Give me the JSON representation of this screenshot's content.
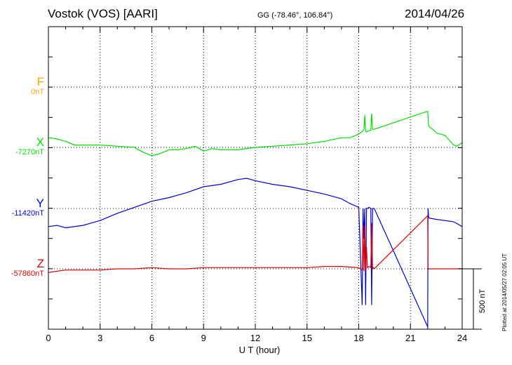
{
  "header": {
    "station": "Vostok (VOS)  [AARI]",
    "coordinates": "GG (-78.46°, 106.84°)",
    "date": "2014/04/26"
  },
  "components": [
    {
      "name": "F",
      "baseline": "0nT",
      "color": "#ffa500"
    },
    {
      "name": "X",
      "baseline": "-7270nT",
      "color": "#00e000"
    },
    {
      "name": "Y",
      "baseline": "-11420nT",
      "color": "#0000dd"
    },
    {
      "name": "Z",
      "baseline": "-57860nT",
      "color": "#dd0000"
    }
  ],
  "scale_bar": {
    "label": "500 nT"
  },
  "plotted_note": "Plotted at 2014/05/27 02:05 UT",
  "chart_data": {
    "type": "line",
    "title": "Vostok (VOS)  [AARI]",
    "xlabel": "U T (hour)",
    "ylabel": "",
    "xlim": [
      0,
      24
    ],
    "xticks": [
      0,
      3,
      6,
      9,
      12,
      15,
      18,
      21,
      24
    ],
    "ylim_nT_offset": [
      -500,
      3500
    ],
    "grid": true,
    "scale_bar_nT": 500,
    "series": [
      {
        "name": "F",
        "baseline_nT": 0,
        "color": "#ffa500",
        "x": [],
        "y": []
      },
      {
        "name": "X",
        "baseline_nT": -7270,
        "color": "#00e000",
        "x": [
          0,
          0.5,
          1,
          1.5,
          2,
          3,
          4,
          5,
          5.5,
          6,
          6.5,
          7,
          7.5,
          8,
          8.5,
          9,
          9.5,
          10,
          11,
          12,
          13,
          14,
          15,
          16,
          17,
          17.5,
          18,
          18.2,
          18.3,
          18.35,
          18.4,
          18.5,
          18.6,
          18.7,
          18.75,
          18.8,
          18.9,
          22.0,
          22.05,
          22.1,
          22.3,
          22.5,
          23,
          23.5,
          23.7,
          24
        ],
        "y": [
          80,
          70,
          50,
          20,
          20,
          20,
          10,
          0,
          -40,
          -70,
          -50,
          -20,
          -20,
          -10,
          10,
          -30,
          -10,
          -20,
          -20,
          0,
          10,
          20,
          30,
          50,
          80,
          80,
          110,
          130,
          150,
          270,
          130,
          130,
          140,
          140,
          280,
          150,
          150,
          300,
          180,
          170,
          150,
          120,
          100,
          20,
          10,
          40
        ]
      },
      {
        "name": "Y",
        "baseline_nT": -11420,
        "color": "#0000dd",
        "x": [
          0,
          0.5,
          1,
          2,
          3,
          4,
          5,
          6,
          7,
          8,
          9,
          10,
          11,
          11.5,
          12,
          13,
          14,
          15,
          16,
          17,
          17.5,
          18,
          18.2,
          18.25,
          18.3,
          18.35,
          18.4,
          18.45,
          18.5,
          18.6,
          18.7,
          18.75,
          18.8,
          18.85,
          18.9,
          22.0,
          22.02,
          22.05,
          22.1,
          22.5,
          23,
          23.5,
          24
        ],
        "y": [
          -150,
          -140,
          -160,
          -140,
          -100,
          -40,
          10,
          60,
          90,
          130,
          180,
          200,
          240,
          250,
          230,
          200,
          180,
          150,
          120,
          80,
          40,
          10,
          -800,
          0,
          -250,
          0,
          -800,
          0,
          0,
          10,
          0,
          -800,
          0,
          0,
          0,
          -980,
          0,
          -70,
          -80,
          -90,
          -100,
          -110,
          -150
        ]
      },
      {
        "name": "Z",
        "baseline_nT": -57860,
        "color": "#dd0000",
        "x": [
          0,
          0.5,
          1,
          2,
          3,
          4,
          5,
          6,
          7,
          8,
          9,
          10,
          11,
          12,
          13,
          14,
          15,
          16,
          17,
          18,
          18.2,
          18.25,
          18.3,
          18.35,
          18.4,
          18.45,
          18.5,
          18.6,
          18.7,
          18.75,
          18.8,
          18.85,
          18.9,
          22.0,
          22.02,
          22.05,
          22.1,
          23,
          24
        ],
        "y": [
          -30,
          -20,
          -10,
          -10,
          -10,
          0,
          0,
          10,
          0,
          0,
          10,
          10,
          10,
          10,
          10,
          10,
          10,
          20,
          20,
          10,
          -10,
          360,
          -20,
          360,
          -10,
          180,
          10,
          20,
          10,
          380,
          0,
          10,
          0,
          440,
          10,
          0,
          0,
          0,
          0
        ]
      }
    ]
  }
}
